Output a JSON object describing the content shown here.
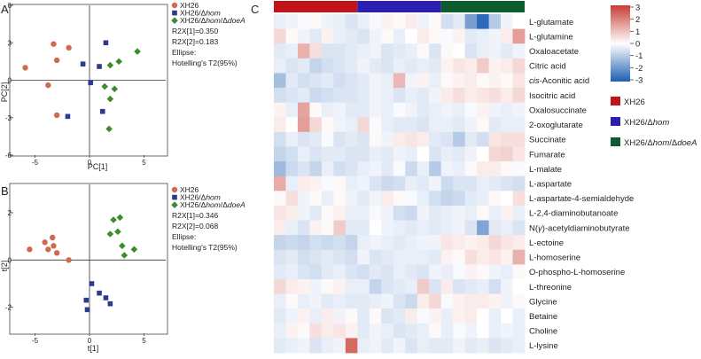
{
  "panels": {
    "a": {
      "letter": "A"
    },
    "b": {
      "letter": "B"
    },
    "c": {
      "letter": "C"
    }
  },
  "colors": {
    "xh26": "#d06a4f",
    "hom": "#2e3a8c",
    "hom_doeA": "#3f8a2e",
    "bar_xh26": "#c0141b",
    "bar_hom": "#2a1fb0",
    "bar_hom_doeA": "#0d5c2e",
    "heat_low": "#1f5fb4",
    "heat_mid": "#ffffff",
    "heat_high": "#c93c34"
  },
  "chart_data": [
    {
      "type": "scatter",
      "panel": "A",
      "xlabel": "PC[1]",
      "ylabel": "PC[2]",
      "xticks": [
        -5,
        0,
        5
      ],
      "yticks": [
        6,
        3,
        0,
        -3,
        -6
      ],
      "xlim": [
        -7,
        7
      ],
      "ylim": [
        -6,
        6
      ],
      "grid": false,
      "legend": {
        "entries": [
          {
            "prefix": "XH26",
            "italic": "",
            "mid": "",
            "italic2": "",
            "color": "#d06a4f",
            "marker": "circle"
          },
          {
            "prefix": "XH26/Δ",
            "italic": "hom",
            "mid": "",
            "italic2": "",
            "color": "#2e3a8c",
            "marker": "square"
          },
          {
            "prefix": "XH26/Δ",
            "italic": "hom",
            "mid": "/Δ",
            "italic2": "doeA",
            "color": "#3f8a2e",
            "marker": "diamond"
          }
        ],
        "notes": [
          "R2X[1]=0.350",
          "R2X[2]=0.183",
          "Ellipse:",
          "Hotelling's T2(95%)"
        ]
      },
      "series": [
        {
          "name": "XH26",
          "marker": "circle",
          "color": "#d06a4f",
          "points": [
            [
              -3.3,
              2.9
            ],
            [
              -1.9,
              2.6
            ],
            [
              -5.9,
              1.0
            ],
            [
              -3.0,
              1.6
            ],
            [
              -3.8,
              -0.4
            ],
            [
              -3.0,
              -2.8
            ]
          ]
        },
        {
          "name": "XH26/Δhom",
          "marker": "square",
          "color": "#2e3a8c",
          "points": [
            [
              1.5,
              3.0
            ],
            [
              -0.6,
              1.3
            ],
            [
              0.9,
              1.1
            ],
            [
              0.1,
              -0.2
            ],
            [
              1.2,
              -2.5
            ],
            [
              -2.0,
              -2.9
            ]
          ]
        },
        {
          "name": "XH26/Δhom/ΔdoeA",
          "marker": "diamond",
          "color": "#3f8a2e",
          "points": [
            [
              4.4,
              2.3
            ],
            [
              2.7,
              1.5
            ],
            [
              1.9,
              1.2
            ],
            [
              1.4,
              -0.5
            ],
            [
              2.3,
              -0.7
            ],
            [
              1.9,
              -1.5
            ],
            [
              1.8,
              -3.9
            ]
          ]
        }
      ]
    },
    {
      "type": "scatter",
      "panel": "B",
      "xlabel": "t[1]",
      "ylabel": "t[2]",
      "xticks": [
        -5,
        0,
        5
      ],
      "yticks": [
        2,
        0,
        -2
      ],
      "xlim": [
        -7,
        7
      ],
      "ylim": [
        -3.1,
        3.2
      ],
      "grid": false,
      "legend": {
        "entries": [
          {
            "prefix": "XH26",
            "italic": "",
            "mid": "",
            "italic2": "",
            "color": "#d06a4f",
            "marker": "circle"
          },
          {
            "prefix": "XH26/Δ",
            "italic": "hom",
            "mid": "",
            "italic2": "",
            "color": "#2e3a8c",
            "marker": "square"
          },
          {
            "prefix": "XH26/Δ",
            "italic": "hom",
            "mid": "/Δ",
            "italic2": "doeA",
            "color": "#3f8a2e",
            "marker": "diamond"
          }
        ],
        "notes": [
          "R2X[1]=0.346",
          "R2X[2]=0.068",
          "Ellipse:",
          "Hotelling's T2(95%)"
        ]
      },
      "series": [
        {
          "name": "XH26",
          "marker": "circle",
          "color": "#d06a4f",
          "points": [
            [
              -3.4,
              0.95
            ],
            [
              -4.1,
              0.75
            ],
            [
              -3.3,
              0.6
            ],
            [
              -3.8,
              0.45
            ],
            [
              -5.5,
              0.45
            ],
            [
              -3.0,
              0.3
            ],
            [
              -1.9,
              0.0
            ]
          ]
        },
        {
          "name": "XH26/Δhom",
          "marker": "square",
          "color": "#2e3a8c",
          "points": [
            [
              0.2,
              -1.0
            ],
            [
              0.9,
              -1.4
            ],
            [
              1.5,
              -1.6
            ],
            [
              -0.3,
              -1.7
            ],
            [
              1.9,
              -1.85
            ],
            [
              -0.2,
              -2.1
            ]
          ]
        },
        {
          "name": "XH26/Δhom/ΔdoeA",
          "marker": "diamond",
          "color": "#3f8a2e",
          "points": [
            [
              2.8,
              1.8
            ],
            [
              2.2,
              1.7
            ],
            [
              1.9,
              1.1
            ],
            [
              2.6,
              1.2
            ],
            [
              4.1,
              0.45
            ],
            [
              3.0,
              0.6
            ],
            [
              3.2,
              0.2
            ]
          ]
        }
      ]
    },
    {
      "type": "heatmap",
      "panel": "C",
      "groups": [
        {
          "name": "XH26",
          "color": "#c0141b",
          "columns": 7
        },
        {
          "name": "XH26/Δhom",
          "color": "#2a1fb0",
          "columns": 7
        },
        {
          "name": "XH26/Δhom/ΔdoeA",
          "color": "#0d5c2e",
          "columns": 7
        }
      ],
      "legend_entries": [
        {
          "prefix": "XH26",
          "italic": "",
          "mid": "",
          "italic2": "",
          "color": "#c0141b"
        },
        {
          "prefix": "XH26/Δ",
          "italic": "hom",
          "mid": "",
          "italic2": "",
          "color": "#2a1fb0"
        },
        {
          "prefix": "XH26/Δ",
          "italic": "hom",
          "mid": "/Δ",
          "italic2": "doeA",
          "color": "#0d5c2e"
        }
      ],
      "colorbar": {
        "ticks": [
          3,
          2,
          1,
          0,
          -1,
          -2,
          -3
        ],
        "range": [
          -3,
          3
        ]
      },
      "rows": [
        {
          "label_pre": "L-glutamate",
          "label_it": "",
          "label_post": "",
          "values": [
            -0.3,
            -0.2,
            -0.1,
            0.1,
            -0.2,
            -0.3,
            -0.5,
            -0.3,
            -0.1,
            0.2,
            0.1,
            0.3,
            -0.2,
            0.1,
            -0.6,
            -0.4,
            -1.8,
            -2.8,
            -1.0,
            -0.2,
            0.0
          ]
        },
        {
          "label_pre": "L-glutamine",
          "label_it": "",
          "label_post": "",
          "values": [
            0.6,
            0.1,
            -0.2,
            -0.4,
            0.2,
            -0.3,
            -0.4,
            -0.5,
            -0.2,
            0.1,
            -0.3,
            0.0,
            0.3,
            0.1,
            -0.1,
            0.2,
            -0.4,
            -0.3,
            -0.2,
            0.3,
            1.5
          ]
        },
        {
          "label_pre": "Oxaloacetate",
          "label_it": "",
          "label_post": "",
          "values": [
            -0.4,
            -0.3,
            1.2,
            0.5,
            -0.5,
            -0.5,
            -0.4,
            -0.3,
            -0.2,
            -0.5,
            -0.4,
            -0.3,
            0.1,
            -0.5,
            0.1,
            0.0,
            -0.5,
            -0.3,
            -0.2,
            -0.4,
            -0.2
          ]
        },
        {
          "label_pre": "Citric acid",
          "label_it": "",
          "label_post": "",
          "values": [
            -0.3,
            -0.5,
            -0.4,
            -0.8,
            -0.6,
            -0.5,
            -0.4,
            -0.2,
            -0.4,
            -0.5,
            -0.3,
            -0.4,
            -0.3,
            -0.4,
            0.2,
            0.4,
            0.3,
            0.8,
            0.2,
            0.3,
            0.6
          ]
        },
        {
          "label_pre": "",
          "label_it": "cis",
          "label_post": "-Aconitic acid",
          "values": [
            -1.2,
            -0.4,
            -0.6,
            -0.5,
            -0.4,
            -0.6,
            -0.5,
            -0.4,
            -0.2,
            -0.3,
            1.1,
            -0.2,
            0.2,
            -0.3,
            0.1,
            0.2,
            0.3,
            0.1,
            0.2,
            0.1,
            0.4
          ]
        },
        {
          "label_pre": "Isocitric acid",
          "label_it": "",
          "label_post": "",
          "values": [
            -0.6,
            -0.5,
            -0.4,
            -0.7,
            -0.6,
            -0.5,
            -0.5,
            -0.4,
            -0.2,
            -0.3,
            -0.5,
            -0.3,
            -0.4,
            -0.2,
            0.3,
            0.5,
            0.3,
            0.4,
            0.5,
            0.3,
            0.6
          ]
        },
        {
          "label_pre": "Oxalosuccinate",
          "label_it": "",
          "label_post": "",
          "values": [
            0.2,
            -0.3,
            1.4,
            0.1,
            -0.3,
            -0.2,
            -0.4,
            -0.4,
            -0.2,
            -0.3,
            -0.1,
            -0.2,
            -0.4,
            -0.3,
            -0.2,
            -0.3,
            -0.1,
            0.2,
            -0.2,
            -0.3,
            -0.2
          ]
        },
        {
          "label_pre": "2-oxoglutarate",
          "label_it": "",
          "label_post": "",
          "values": [
            0.3,
            0.0,
            1.5,
            0.6,
            0.1,
            -0.2,
            -0.3,
            0.6,
            -0.1,
            -0.3,
            -0.4,
            -0.4,
            -0.5,
            -0.3,
            -0.3,
            -0.4,
            -0.2,
            0.1,
            -0.4,
            -0.3,
            -0.3
          ]
        },
        {
          "label_pre": "Succinate",
          "label_it": "",
          "label_post": "",
          "values": [
            -0.6,
            -0.3,
            -0.5,
            -0.4,
            -0.1,
            -0.5,
            -0.4,
            -0.5,
            0.1,
            -0.2,
            0.3,
            0.4,
            0.3,
            -0.4,
            -0.5,
            -1.0,
            -0.4,
            -0.6,
            0.4,
            0.5,
            0.5
          ]
        },
        {
          "label_pre": "Fumarate",
          "label_it": "",
          "label_post": "",
          "values": [
            -0.8,
            -0.6,
            -0.3,
            -0.5,
            -0.4,
            -0.4,
            -0.5,
            -0.5,
            -0.3,
            -0.4,
            -0.2,
            -0.3,
            0.0,
            -0.5,
            -0.3,
            -0.4,
            -0.2,
            0.0,
            0.6,
            0.7,
            0.4
          ]
        },
        {
          "label_pre": "L-malate",
          "label_it": "",
          "label_post": "",
          "values": [
            -1.3,
            -0.7,
            -0.5,
            -0.8,
            -0.3,
            -0.6,
            -0.5,
            -0.3,
            -0.2,
            -0.4,
            -0.1,
            -0.7,
            -0.3,
            -1.0,
            -0.2,
            -0.3,
            0.1,
            0.3,
            0.3,
            0.1,
            -0.1
          ]
        },
        {
          "label_pre": "L-aspartate",
          "label_it": "",
          "label_post": "",
          "values": [
            1.3,
            -0.3,
            0.3,
            0.2,
            -0.1,
            0.1,
            -0.3,
            -0.2,
            -0.5,
            -0.7,
            -0.6,
            -0.3,
            -0.4,
            -0.2,
            -0.7,
            -0.5,
            -0.5,
            -0.3,
            -0.4,
            -0.5,
            -0.6
          ]
        },
        {
          "label_pre": "L-aspartate-4-semialdehyde",
          "label_it": "",
          "label_post": "",
          "values": [
            0.1,
            0.5,
            -0.2,
            0.1,
            -0.3,
            0.1,
            -0.2,
            -0.4,
            -0.2,
            0.3,
            0.1,
            -0.1,
            -0.3,
            -0.6,
            -0.8,
            -0.7,
            -0.4,
            -0.3,
            0.1,
            0.0,
            0.5
          ]
        },
        {
          "label_pre": "L-2,4-diaminobutanoate",
          "label_it": "",
          "label_post": "",
          "values": [
            0.4,
            0.3,
            -0.2,
            -0.4,
            0.1,
            0.2,
            -0.3,
            -0.3,
            -0.1,
            -0.2,
            -0.6,
            -0.7,
            -0.2,
            -0.4,
            -0.3,
            -0.2,
            -0.3,
            0.1,
            -0.3,
            0.2,
            -0.3
          ]
        },
        {
          "label_pre": "N(",
          "label_it": "γ",
          "label_post": ")-acetyldiaminobutyrate",
          "values": [
            0.3,
            -0.3,
            -0.5,
            0.2,
            0.1,
            0.8,
            -0.4,
            -0.4,
            0.0,
            -0.2,
            -0.3,
            -0.4,
            -0.3,
            -0.4,
            -0.3,
            -0.2,
            -0.5,
            -1.7,
            -0.4,
            -0.3,
            -0.5
          ]
        },
        {
          "label_pre": "L-ectoine",
          "label_it": "",
          "label_post": "",
          "values": [
            -0.8,
            -0.7,
            -0.8,
            -0.6,
            -0.7,
            -0.6,
            -0.8,
            -0.3,
            -0.2,
            -0.3,
            -0.4,
            -0.3,
            -0.2,
            -0.2,
            0.4,
            0.3,
            0.2,
            0.3,
            0.6,
            0.4,
            0.3
          ]
        },
        {
          "label_pre": "L-homoserine",
          "label_it": "",
          "label_post": "",
          "values": [
            -0.5,
            -0.4,
            -0.6,
            -0.5,
            -0.4,
            -0.5,
            -0.6,
            -0.2,
            -0.5,
            -0.4,
            -0.3,
            -0.3,
            -0.3,
            -0.4,
            0.2,
            0.1,
            0.5,
            0.3,
            0.4,
            0.2,
            1.2
          ]
        },
        {
          "label_pre": "O-phospho-L-homoserine",
          "label_it": "",
          "label_post": "",
          "values": [
            -0.4,
            -0.3,
            -0.5,
            -0.6,
            -0.4,
            -0.3,
            -0.5,
            -0.6,
            -0.4,
            -0.5,
            -0.3,
            -0.4,
            -0.5,
            -0.2,
            -0.3,
            -0.1,
            0.2,
            0.1,
            -0.2,
            -0.3,
            0.1
          ]
        },
        {
          "label_pre": "L-threonine",
          "label_it": "",
          "label_post": "",
          "values": [
            0.6,
            0.3,
            0.2,
            -0.2,
            0.1,
            0.2,
            -0.3,
            -0.3,
            -0.8,
            -0.5,
            -0.4,
            -0.3,
            0.8,
            -0.5,
            0.3,
            -0.5,
            -0.4,
            -0.3,
            -0.6,
            -0.2,
            0.0
          ]
        },
        {
          "label_pre": "Glycine",
          "label_it": "",
          "label_post": "",
          "values": [
            -0.3,
            0.1,
            -0.3,
            -0.2,
            -0.4,
            -0.3,
            -0.4,
            -0.4,
            -0.3,
            -0.2,
            -0.5,
            -0.7,
            0.3,
            0.6,
            -0.1,
            0.2,
            0.3,
            0.3,
            0.2,
            -0.2,
            0.1
          ]
        },
        {
          "label_pre": "Betaine",
          "label_it": "",
          "label_post": "",
          "values": [
            -0.4,
            -0.2,
            0.2,
            -0.3,
            0.3,
            -0.2,
            0.1,
            -0.4,
            0.1,
            -0.5,
            -0.4,
            0.3,
            -0.1,
            0.2,
            -0.3,
            0.2,
            0.3,
            0.0,
            -0.3,
            0.0,
            -0.3
          ]
        },
        {
          "label_pre": "Choline",
          "label_it": "",
          "label_post": "",
          "values": [
            -0.3,
            0.2,
            0.1,
            0.5,
            0.3,
            0.4,
            0.2,
            -0.4,
            -0.2,
            -0.3,
            -0.5,
            -0.4,
            -0.3,
            0.1,
            -0.3,
            -0.1,
            -0.2,
            0.0,
            -0.3,
            -0.2,
            -0.3
          ]
        },
        {
          "label_pre": "L-lysine",
          "label_it": "",
          "label_post": "",
          "values": [
            -0.4,
            -0.3,
            -0.2,
            -0.5,
            -0.3,
            -0.2,
            2.3,
            -0.3,
            -0.2,
            -0.4,
            -0.2,
            -0.5,
            -0.3,
            -0.4,
            -0.4,
            -0.2,
            -0.4,
            -0.3,
            -0.5,
            -0.4,
            -0.3
          ]
        }
      ]
    }
  ]
}
